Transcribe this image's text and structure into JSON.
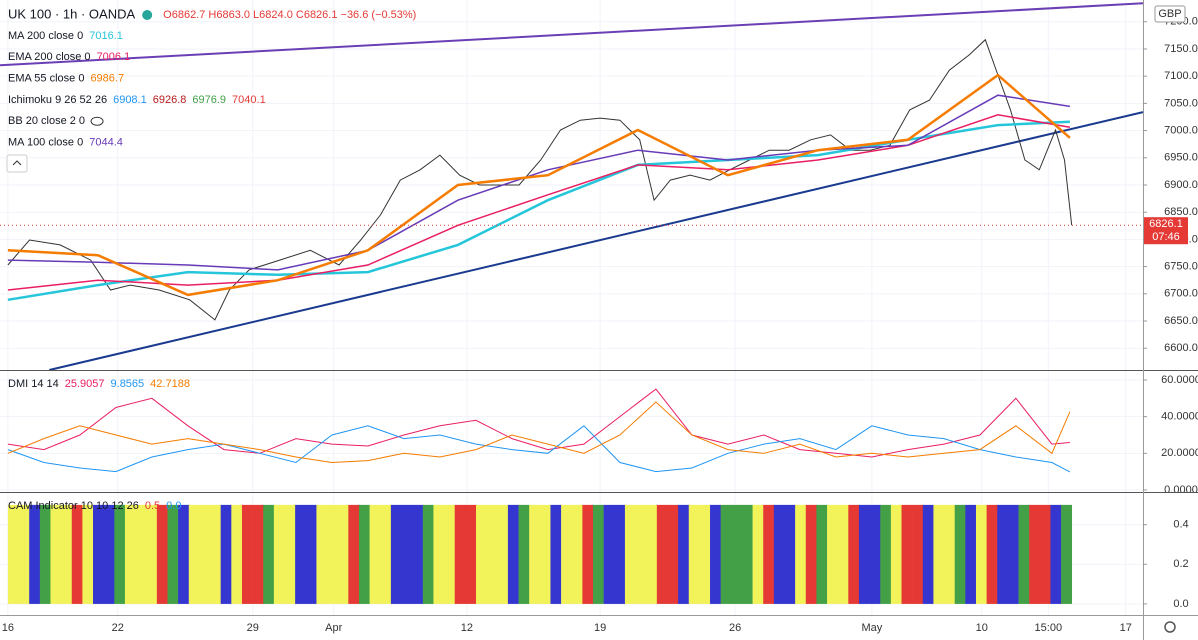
{
  "header": {
    "symbol": "UK 100 · 1h · OANDA",
    "ohlc": "O6862.7 H6863.0 L6824.0 C6826.1 −36.6 (−0.53%)"
  },
  "chart_data": [
    {
      "type": "line",
      "currency": "GBP",
      "xlim": [
        -0.44,
        63.06
      ],
      "xticks": [
        {
          "value": 0,
          "label": "16"
        },
        {
          "value": 6.1,
          "label": "22"
        },
        {
          "value": 13.6,
          "label": "29"
        },
        {
          "value": 18.1,
          "label": "Apr"
        },
        {
          "value": 25.5,
          "label": "12"
        },
        {
          "value": 32.9,
          "label": "19"
        },
        {
          "value": 40.4,
          "label": "26"
        },
        {
          "value": 48,
          "label": "May"
        },
        {
          "value": 54.1,
          "label": "10"
        },
        {
          "value": 57.8,
          "label": "15:00"
        },
        {
          "value": 62.1,
          "label": "17"
        }
      ],
      "ylim": [
        6560,
        7240
      ],
      "yticks": [
        {
          "value": 6600,
          "label": "6600.0"
        },
        {
          "value": 6650,
          "label": "6650.0"
        },
        {
          "value": 6700,
          "label": "6700.0"
        },
        {
          "value": 6750,
          "label": "6750.0"
        },
        {
          "value": 6800,
          "label": "6800.0"
        },
        {
          "value": 6850,
          "label": "6850.0"
        },
        {
          "value": 6900,
          "label": "6900.0"
        },
        {
          "value": 6950,
          "label": "6950.0"
        },
        {
          "value": 7000,
          "label": "7000.0"
        },
        {
          "value": 7050,
          "label": "7050.0"
        },
        {
          "value": 7100,
          "label": "7100.0"
        },
        {
          "value": 7150,
          "label": "7150.0"
        },
        {
          "value": 7200,
          "label": "7200.0"
        }
      ],
      "legend": [
        {
          "name": "MA 200 close 0",
          "values": [
            {
              "text": "7016.1",
              "color": "#26c6da"
            }
          ]
        },
        {
          "name": "EMA 200 close 0",
          "values": [
            {
              "text": "7006.1",
              "color": "#e91e63"
            }
          ]
        },
        {
          "name": "EMA 55 close 0",
          "values": [
            {
              "text": "6986.7",
              "color": "#f57c00"
            }
          ]
        },
        {
          "name": "Ichimoku 9 26 52 26",
          "values": [
            {
              "text": "6908.1",
              "color": "#2196f3"
            },
            {
              "text": "6926.8",
              "color": "#b71c1c"
            },
            {
              "text": "6976.9",
              "color": "#43a047"
            },
            {
              "text": "7040.1",
              "color": "#e53935"
            }
          ]
        },
        {
          "name": "BB 20 close 2 0",
          "values": []
        },
        {
          "name": "MA 100 close 0",
          "values": [
            {
              "text": "7044.4",
              "color": "#673ab7"
            }
          ]
        }
      ],
      "series": [
        {
          "color": "#333333",
          "width": 1,
          "x": [
            0,
            1.2,
            2.9,
            4.6,
            5.7,
            6.8,
            8.4,
            10.1,
            11.5,
            12.3,
            13.4,
            15.1,
            16.8,
            18.4,
            19.6,
            20.7,
            21.8,
            22.9,
            24,
            25.1,
            26.2,
            27.3,
            28.4,
            29.6,
            30.7,
            31.8,
            32.9,
            34,
            35.1,
            35.9,
            36.8,
            37.9,
            39,
            40.1,
            41.2,
            42.3,
            43.4,
            44.6,
            45.7,
            46.8,
            47.9,
            49,
            50.1,
            51.2,
            52.3,
            53.4,
            54.3,
            55.1,
            55.7,
            56.5,
            57.3,
            58.2,
            58.7,
            59.1
          ],
          "values": [
            6753,
            6799,
            6790,
            6762,
            6707,
            6716,
            6707,
            6689,
            6652,
            6707,
            6744,
            6762,
            6780,
            6753,
            6799,
            6845,
            6909,
            6928,
            6955,
            6918,
            6900,
            6900,
            6900,
            6946,
            7001,
            7019,
            7023,
            7019,
            6983,
            6872,
            6909,
            6918,
            6909,
            6928,
            6946,
            6964,
            6964,
            6983,
            6992,
            6964,
            6964,
            6973,
            7038,
            7056,
            7111,
            7139,
            7167,
            7093,
            7038,
            6946,
            6928,
            7001,
            6946,
            6826.1
          ]
        },
        {
          "color": "#26c6da",
          "width": 2.5,
          "x": [
            0,
            5,
            10,
            15,
            20,
            25,
            30,
            35,
            40,
            45,
            50,
            55,
            59
          ],
          "values": [
            6689,
            6716,
            6740,
            6735,
            6740,
            6790,
            6872,
            6937,
            6946,
            6955,
            6983,
            7010,
            7016.1
          ]
        },
        {
          "color": "#e91e63",
          "width": 1.5,
          "x": [
            0,
            5,
            10,
            15,
            20,
            25,
            30,
            35,
            40,
            45,
            50,
            55,
            59
          ],
          "values": [
            6707,
            6725,
            6716,
            6725,
            6753,
            6826,
            6882,
            6937,
            6928,
            6946,
            6973,
            7029,
            7006.1
          ]
        },
        {
          "color": "#673ab7",
          "width": 1.5,
          "x": [
            0,
            5,
            10,
            15,
            20,
            25,
            30,
            35,
            40,
            45,
            50,
            55,
            59
          ],
          "values": [
            6762,
            6758,
            6753,
            6744,
            6780,
            6872,
            6928,
            6964,
            6946,
            6964,
            6973,
            7065,
            7044.4
          ]
        },
        {
          "color": "#f57c00",
          "width": 2.5,
          "x": [
            0,
            5,
            10,
            15,
            20,
            25,
            30,
            35,
            40,
            45,
            50,
            55,
            59
          ],
          "values": [
            6780,
            6771,
            6698,
            6725,
            6780,
            6900,
            6918,
            7001,
            6918,
            6964,
            6983,
            7102,
            6986.7
          ]
        }
      ],
      "trendlines": [
        {
          "color": "#6a3fb5",
          "x": [
            -0.44,
            63.06
          ],
          "values": [
            7120,
            7234
          ]
        },
        {
          "color": "#1a3a8f",
          "x": [
            2.3,
            63.06
          ],
          "values": [
            6560,
            7034
          ]
        }
      ],
      "last_price": {
        "value": 6826.1,
        "label": "6826.1",
        "countdown": "07:46"
      }
    },
    {
      "type": "line",
      "name": "DMI 14 14",
      "ylim": [
        -1.1,
        64.9
      ],
      "yticks": [
        {
          "value": 0,
          "label": "0.0000"
        },
        {
          "value": 20,
          "label": "20.0000"
        },
        {
          "value": 40,
          "label": "40.0000"
        },
        {
          "value": 60,
          "label": "60.0000"
        }
      ],
      "legend_values": [
        {
          "text": "25.9057",
          "color": "#e91e63"
        },
        {
          "text": "9.8565",
          "color": "#2196f3"
        },
        {
          "text": "42.7188",
          "color": "#f57c00"
        }
      ],
      "series": [
        {
          "color": "#e91e63",
          "x": [
            0,
            2,
            4,
            6,
            8,
            10,
            12,
            14,
            16,
            18,
            20,
            22,
            24,
            26,
            28,
            30,
            32,
            34,
            36,
            38,
            40,
            42,
            44,
            46,
            48,
            50,
            52,
            54,
            56,
            58,
            59
          ],
          "values": [
            25,
            22,
            30,
            45,
            50,
            35,
            22,
            20,
            28,
            25,
            24,
            30,
            35,
            38,
            28,
            22,
            25,
            40,
            55,
            30,
            25,
            30,
            22,
            20,
            18,
            22,
            25,
            30,
            50,
            25,
            25.9057
          ]
        },
        {
          "color": "#2196f3",
          "x": [
            0,
            2,
            4,
            6,
            8,
            10,
            12,
            14,
            16,
            18,
            20,
            22,
            24,
            26,
            28,
            30,
            32,
            34,
            36,
            38,
            40,
            42,
            44,
            46,
            48,
            50,
            52,
            54,
            56,
            58,
            59
          ],
          "values": [
            22,
            15,
            12,
            10,
            18,
            22,
            25,
            20,
            15,
            30,
            35,
            28,
            30,
            25,
            22,
            20,
            35,
            15,
            10,
            12,
            20,
            25,
            28,
            22,
            35,
            30,
            28,
            22,
            18,
            15,
            9.8565
          ]
        },
        {
          "color": "#f57c00",
          "x": [
            0,
            2,
            4,
            6,
            8,
            10,
            12,
            14,
            16,
            18,
            20,
            22,
            24,
            26,
            28,
            30,
            32,
            34,
            36,
            38,
            40,
            42,
            44,
            46,
            48,
            50,
            52,
            54,
            56,
            58,
            59
          ],
          "values": [
            20,
            28,
            35,
            30,
            25,
            28,
            25,
            22,
            18,
            15,
            16,
            20,
            18,
            22,
            30,
            25,
            20,
            30,
            48,
            30,
            22,
            20,
            25,
            18,
            20,
            18,
            20,
            22,
            35,
            20,
            42.7188
          ]
        }
      ]
    },
    {
      "type": "stripes",
      "name": "CAM Indicator 10 10 12 26",
      "ylim": [
        -0.056,
        0.56
      ],
      "yticks": [
        {
          "value": 0,
          "label": "0.0"
        },
        {
          "value": 0.2,
          "label": "0.2"
        },
        {
          "value": 0.4,
          "label": "0.4"
        }
      ],
      "legend_values": [
        {
          "text": "0.5",
          "color": "#e53935"
        },
        {
          "text": "0.0",
          "color": "#2196f3"
        }
      ],
      "palette": {
        "y": "#f2f25a",
        "g": "#43a047",
        "r": "#e53935",
        "b": "#3535d0"
      },
      "colors": "yybgyyrybbgyyyrgbyyybyrrgyybbyyyrgyybbbgyyrryyybgyybyyrgbbyyyrrbyybgggyrbbyrgyyrbbgyrrbyygbyrbbgrrbg",
      "values": [
        0.5,
        0.5,
        0.5,
        0.5,
        0.5,
        0.5,
        0.5,
        0.5,
        0.5,
        0.5,
        0.5,
        0.5,
        0.5,
        0.5,
        0.5,
        0.5,
        0.5,
        0.5,
        0.5,
        0.5,
        0.5,
        0.5,
        0.5,
        0.5,
        0.5,
        0.5,
        0.5,
        0.5,
        0.5,
        0.5,
        0.5,
        0.5,
        0.5,
        0.5,
        0.5,
        0.5,
        0.5,
        0.5,
        0.5,
        0.5,
        0.5,
        0.5,
        0.5,
        0.5,
        0.5,
        0.5,
        0.5,
        0.5,
        0.5,
        0.5,
        0.5,
        0.5,
        0.5,
        0.5,
        0.5,
        0.5,
        0.5,
        0.5,
        0.5,
        0.5,
        0.5,
        0.5,
        0.5,
        0.5,
        0.5,
        0.5,
        0.5,
        0.5,
        0.5,
        0.5,
        0.5,
        0.5,
        0.5,
        0.5,
        0.5,
        0.5,
        0.5,
        0.5,
        0.5,
        0.5,
        0.5,
        0.5,
        0.5,
        0.5,
        0.5,
        0.5,
        0.5,
        0.5,
        0.5,
        0.5,
        0.5,
        0.5,
        0.5,
        0.5,
        0.5,
        0.5,
        0.5,
        0.5,
        0.5,
        0.5
      ]
    }
  ]
}
